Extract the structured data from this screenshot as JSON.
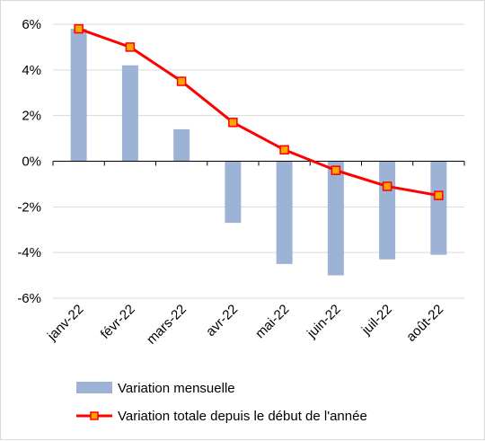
{
  "chart_data": {
    "type": "bar+line",
    "categories": [
      "janv-22",
      "févr-22",
      "mars-22",
      "avr-22",
      "mai-22",
      "juin-22",
      "juil-22",
      "août-22"
    ],
    "series": [
      {
        "name": "Variation mensuelle",
        "type": "bar",
        "color": "#9db3d6",
        "values": [
          5.8,
          4.2,
          1.4,
          -2.7,
          -4.5,
          -5.0,
          -4.3,
          -4.1
        ]
      },
      {
        "name": "Variation totale depuis le début de l'année",
        "type": "line",
        "color": "#ff0000",
        "marker_color": "#ffa500",
        "values": [
          5.8,
          5.0,
          3.5,
          1.7,
          0.5,
          -0.4,
          -1.1,
          -1.5
        ]
      }
    ],
    "ylim": [
      -6,
      6
    ],
    "yticks": [
      6,
      4,
      2,
      0,
      -2,
      -4,
      -6
    ],
    "ytick_labels": [
      "6%",
      "4%",
      "2%",
      "0%",
      "-2%",
      "-4%",
      "-6%"
    ],
    "grid": true,
    "legend_position": "bottom"
  }
}
